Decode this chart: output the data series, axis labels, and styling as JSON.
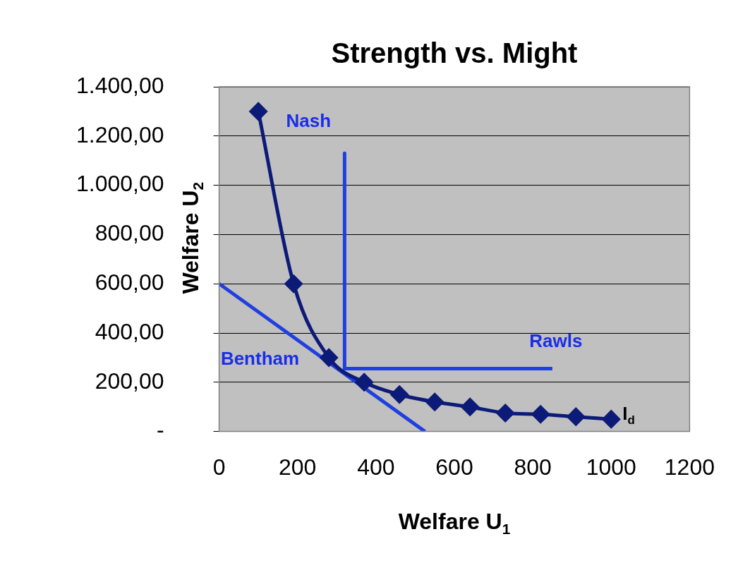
{
  "chart_data": {
    "type": "line",
    "title": "Strength vs. Might",
    "xlabel": "Welfare U$_{1}$",
    "ylabel": "Welfare U$_{2}$",
    "xlim": [
      0,
      1200
    ],
    "xticks": [
      0,
      200,
      400,
      600,
      800,
      1000,
      1200
    ],
    "ylim": [
      0,
      1400
    ],
    "yticks": [
      {
        "value": 0,
        "label": "-"
      },
      {
        "value": 200,
        "label": "200,00"
      },
      {
        "value": 400,
        "label": "400,00"
      },
      {
        "value": 600,
        "label": "600,00"
      },
      {
        "value": 800,
        "label": "800,00"
      },
      {
        "value": 1000,
        "label": "1.000,00"
      },
      {
        "value": 1200,
        "label": "1.200,00"
      },
      {
        "value": 1400,
        "label": "1.400,00"
      }
    ],
    "grid": "y",
    "series": [
      {
        "name": "I$_{d}$",
        "color": "#0c1a78",
        "marker": "diamond",
        "x": [
          100,
          190,
          280,
          370,
          460,
          550,
          640,
          730,
          820,
          910,
          1000
        ],
        "values": [
          1300,
          600,
          300,
          200,
          150,
          120,
          100,
          75,
          70,
          60,
          50
        ]
      },
      {
        "name": "Bentham",
        "color": "#1f3fe0",
        "marker": "none",
        "x": [
          0,
          525
        ],
        "values": [
          600,
          0
        ]
      },
      {
        "name": "Rawls",
        "color": "#1f3fe0",
        "marker": "none",
        "x": [
          320,
          320,
          850
        ],
        "values": [
          1130,
          255,
          255
        ]
      }
    ],
    "annotations": [
      "Nash"
    ]
  }
}
